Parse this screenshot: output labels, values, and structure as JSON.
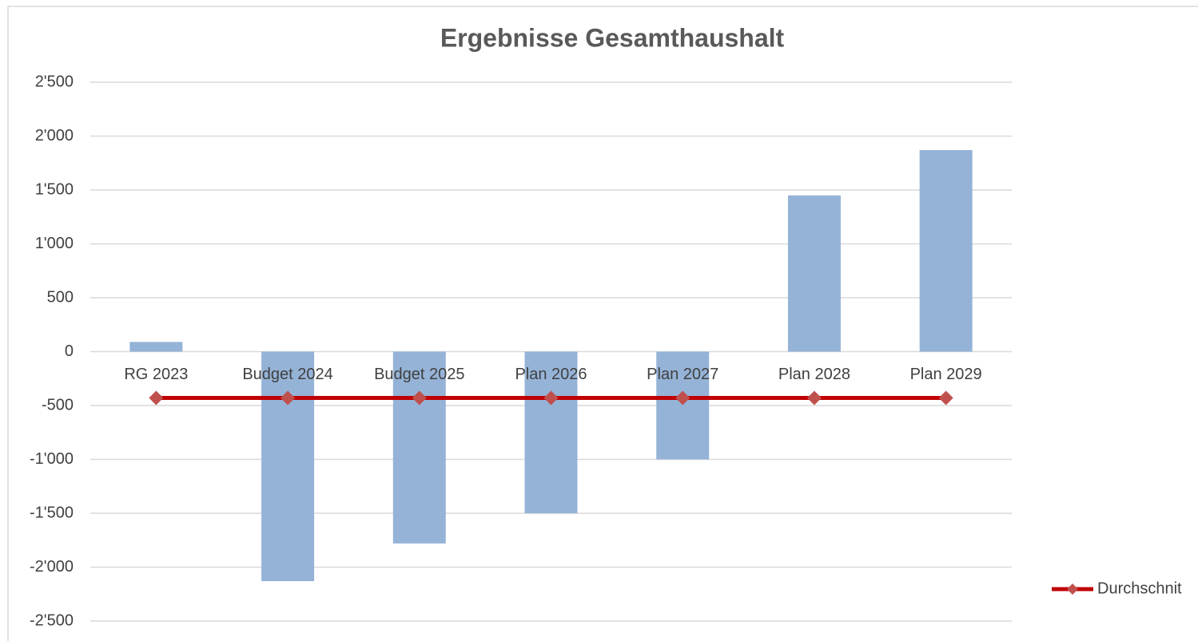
{
  "chart_data": {
    "type": "bar_line",
    "title": "Ergebnisse Gesamthaushalt",
    "categories": [
      "RG 2023",
      "Budget 2024",
      "Budget 2025",
      "Plan 2026",
      "Plan 2027",
      "Plan 2028",
      "Plan 2029"
    ],
    "series": [
      {
        "type": "bar",
        "color": "#95b3d7",
        "values": [
          90,
          -2130,
          -1780,
          -1500,
          -1000,
          1450,
          1870
        ]
      },
      {
        "type": "line",
        "name": "Durchschnit",
        "color": "#c00000",
        "marker_color": "#c0504d",
        "values": [
          -430,
          -430,
          -430,
          -430,
          -430,
          -430,
          -430
        ]
      }
    ],
    "ylim": [
      -2500,
      2500
    ],
    "yticks": [
      {
        "value": -2500,
        "label": "-2'500"
      },
      {
        "value": -2000,
        "label": "-2'000"
      },
      {
        "value": -1500,
        "label": "-1'500"
      },
      {
        "value": -1000,
        "label": "-1'000"
      },
      -500,
      0,
      500,
      {
        "value": 1000,
        "label": "1'000"
      },
      {
        "value": 1500,
        "label": "1'500"
      },
      {
        "value": 2000,
        "label": "2'000"
      },
      {
        "value": 2500,
        "label": "2'500"
      }
    ],
    "grid": true,
    "legend": "right"
  }
}
